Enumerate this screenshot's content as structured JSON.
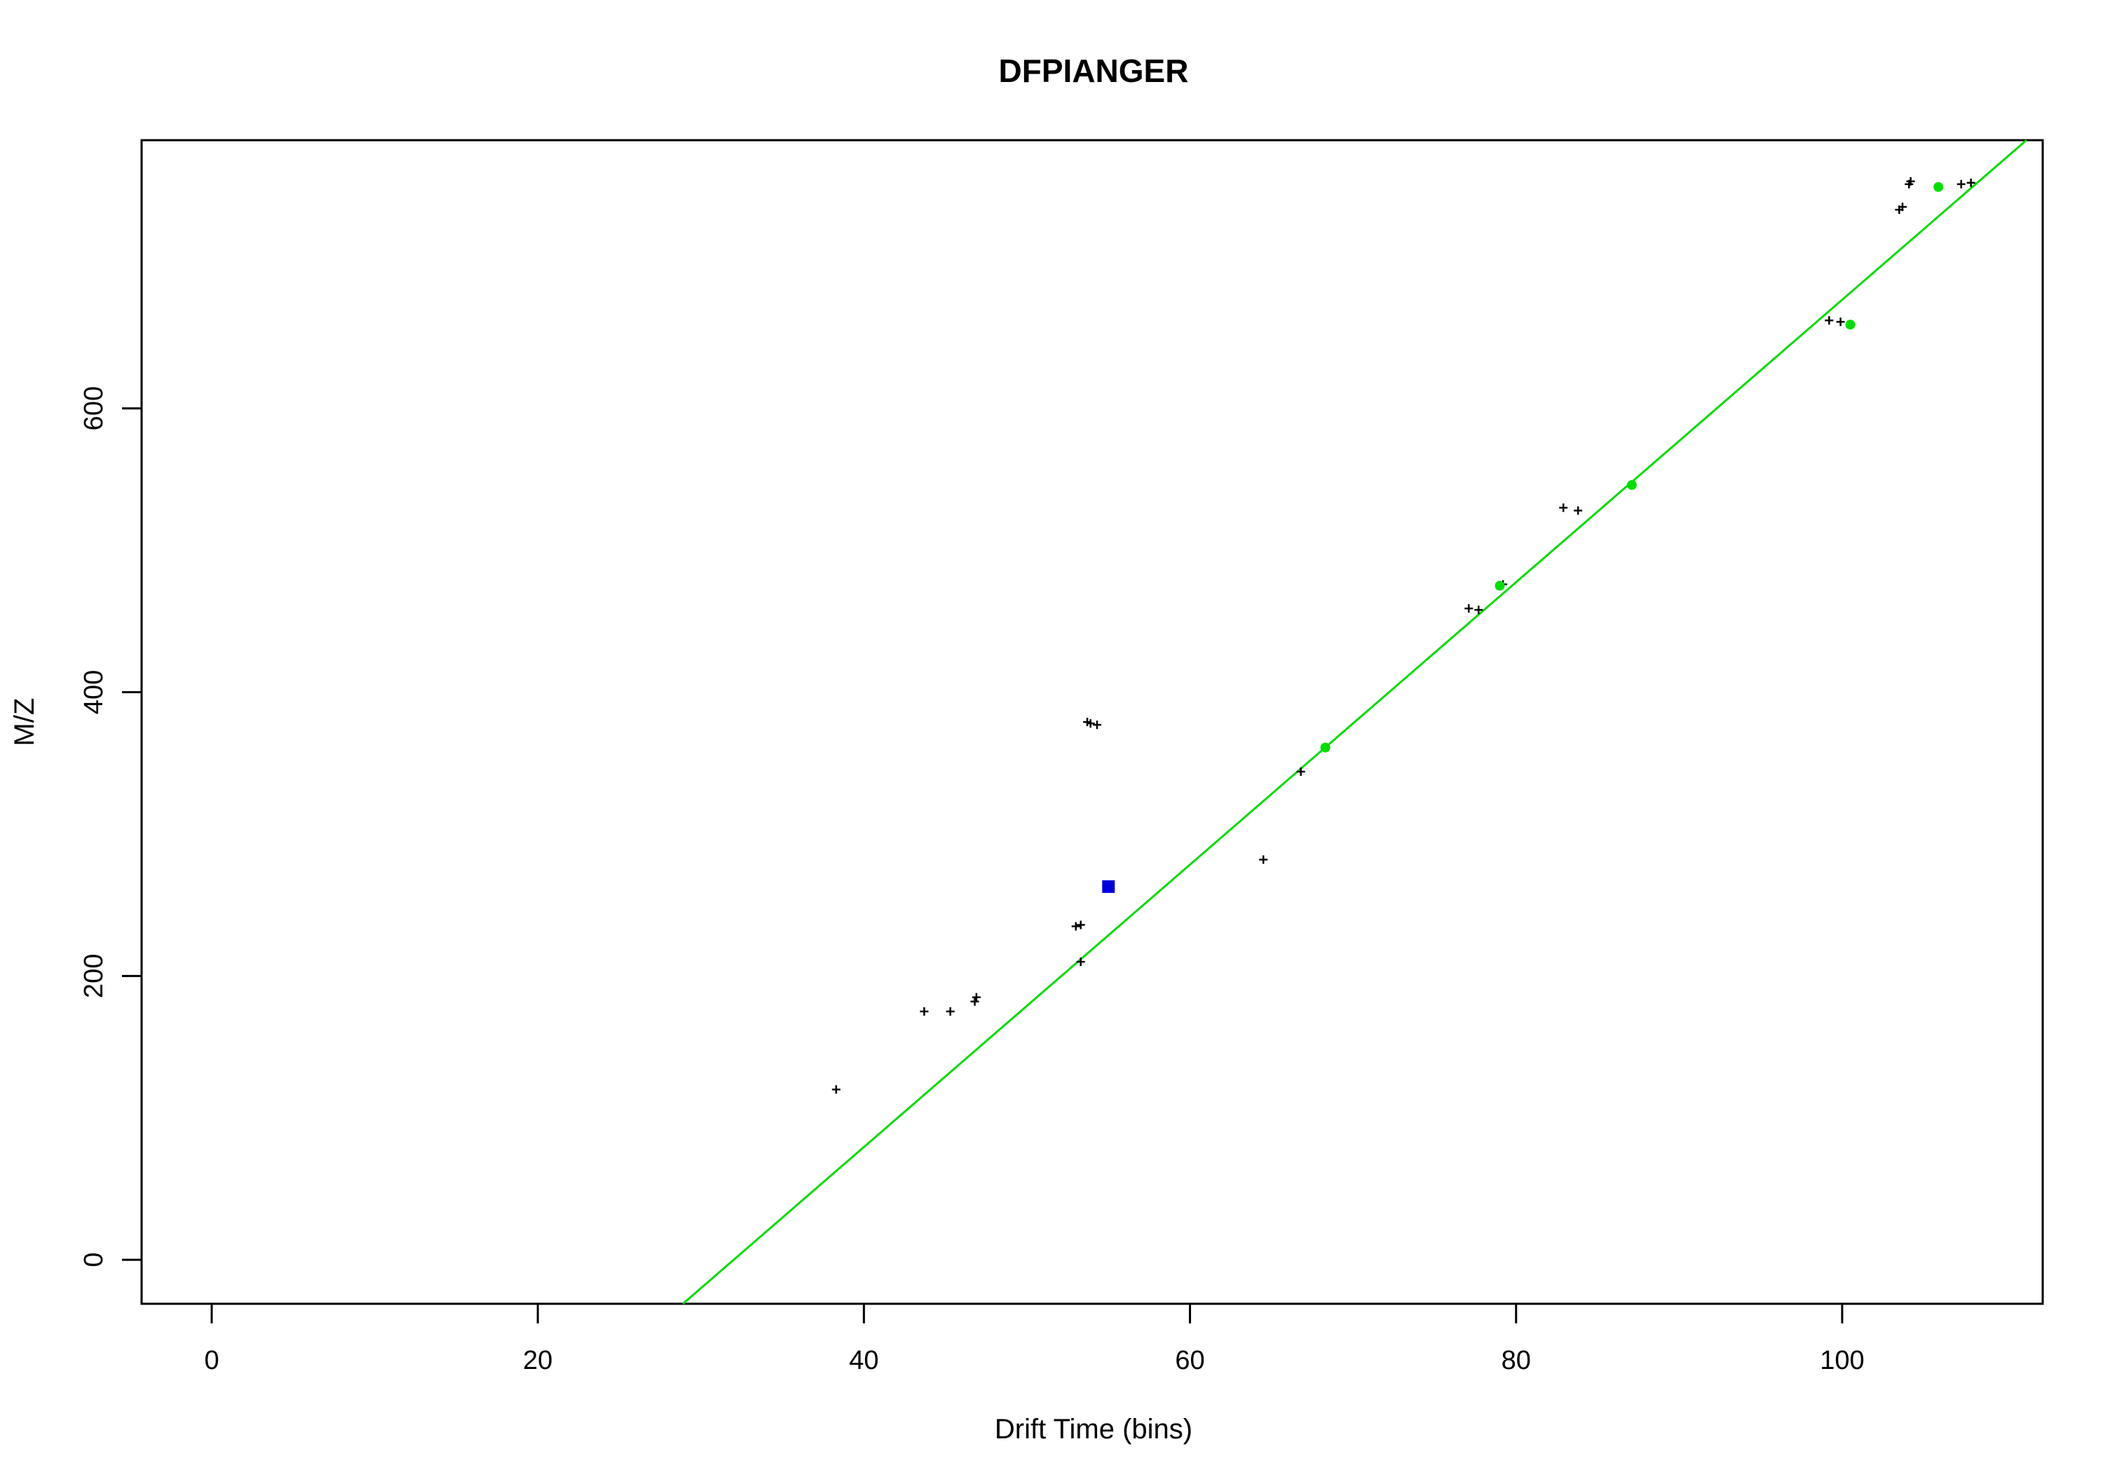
{
  "chart_data": {
    "type": "scatter",
    "title": "DFPIANGER",
    "xlabel": "Drift Time (bins)",
    "ylabel": "M/Z",
    "xlim": [
      -4.3,
      112.3
    ],
    "ylim": [
      -31,
      789
    ],
    "xticks": [
      0,
      20,
      40,
      60,
      80,
      100
    ],
    "yticks": [
      0,
      200,
      400,
      600
    ],
    "grid": false,
    "legend": "none",
    "colors": {
      "black_points": "#000000",
      "green_points": "#00e000",
      "blue_point": "#0000dd",
      "fit_line": "#00dd00"
    },
    "series": [
      {
        "marker": "plus",
        "color": "#000000",
        "points": [
          {
            "x": 38.3,
            "y": 120
          },
          {
            "x": 43.7,
            "y": 175
          },
          {
            "x": 45.3,
            "y": 175
          },
          {
            "x": 46.8,
            "y": 182
          },
          {
            "x": 46.9,
            "y": 185
          },
          {
            "x": 53.0,
            "y": 235
          },
          {
            "x": 53.3,
            "y": 236
          },
          {
            "x": 53.3,
            "y": 210
          },
          {
            "x": 53.7,
            "y": 379
          },
          {
            "x": 53.9,
            "y": 378
          },
          {
            "x": 54.3,
            "y": 377
          },
          {
            "x": 64.5,
            "y": 282
          },
          {
            "x": 66.8,
            "y": 344
          },
          {
            "x": 77.1,
            "y": 459
          },
          {
            "x": 77.7,
            "y": 458
          },
          {
            "x": 79.2,
            "y": 476
          },
          {
            "x": 82.9,
            "y": 530
          },
          {
            "x": 83.8,
            "y": 528
          },
          {
            "x": 99.2,
            "y": 662
          },
          {
            "x": 99.9,
            "y": 661
          },
          {
            "x": 103.5,
            "y": 740
          },
          {
            "x": 103.7,
            "y": 742
          },
          {
            "x": 104.1,
            "y": 758
          },
          {
            "x": 104.2,
            "y": 760
          },
          {
            "x": 107.3,
            "y": 758
          },
          {
            "x": 107.9,
            "y": 759
          }
        ]
      },
      {
        "marker": "circle",
        "color": "#00e000",
        "points": [
          {
            "x": 68.3,
            "y": 361
          },
          {
            "x": 79.0,
            "y": 475
          },
          {
            "x": 87.1,
            "y": 546
          },
          {
            "x": 100.5,
            "y": 659
          },
          {
            "x": 105.9,
            "y": 756
          }
        ]
      },
      {
        "marker": "square",
        "color": "#0000dd",
        "points": [
          {
            "x": 55.0,
            "y": 263
          }
        ]
      }
    ],
    "lines": [
      {
        "color": "#00dd00",
        "from": {
          "x": 28.9,
          "y": -31
        },
        "to": {
          "x": 111.3,
          "y": 789
        }
      }
    ]
  }
}
